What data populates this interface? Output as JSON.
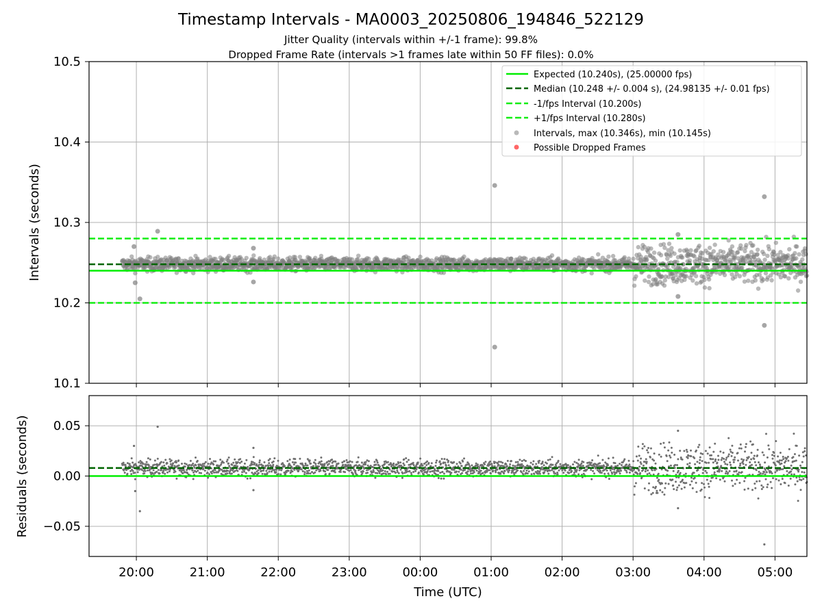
{
  "chart_data": {
    "type": "scatter",
    "title": "Timestamp Intervals - MA0003_20250806_194846_522129",
    "subtitle_lines": [
      "Jitter Quality (intervals within +/-1 frame): 99.8%",
      "Dropped Frame Rate (intervals >1 frames late within 50 FF files): 0.0%"
    ],
    "xlabel": "Time (UTC)",
    "x_axis_type": "time",
    "x_range": [
      "2025-08-06T19:20",
      "2025-08-07T05:27"
    ],
    "x_ticks": [
      "20:00",
      "21:00",
      "22:00",
      "23:00",
      "00:00",
      "01:00",
      "02:00",
      "03:00",
      "04:00",
      "05:00"
    ],
    "data_time_range": [
      "2025-08-06T19:48",
      "2025-08-07T05:27"
    ],
    "legend_position": "top-right",
    "grid": true,
    "colors": {
      "expected": "#00ee00",
      "median": "#006400",
      "interval_band": "#11ee11",
      "points": "#808080",
      "dropped": "#ff4040"
    },
    "top_panel": {
      "ylabel": "Intervals (seconds)",
      "ylim": [
        10.1,
        10.5
      ],
      "y_ticks": [
        "10.1",
        "10.2",
        "10.3",
        "10.4",
        "10.5"
      ],
      "lines": {
        "expected": 10.24,
        "median": 10.248,
        "minus_interval": 10.2,
        "plus_interval": 10.28
      },
      "legend": [
        "Expected (10.240s), (25.00000 fps)",
        "Median (10.248 +/- 0.004 s), (24.98135 +/- 0.01 fps)",
        "-1/fps Interval (10.200s)",
        "+1/fps Interval (10.280s)",
        "Intervals, max (10.346s), min (10.145s)",
        "Possible Dropped Frames"
      ],
      "outliers": [
        {
          "time": "2025-08-06T20:03",
          "value": 10.205
        },
        {
          "time": "2025-08-06T20:18",
          "value": 10.289
        },
        {
          "time": "2025-08-06T19:58",
          "value": 10.27
        },
        {
          "time": "2025-08-06T19:59",
          "value": 10.225
        },
        {
          "time": "2025-08-06T21:39",
          "value": 10.268
        },
        {
          "time": "2025-08-06T21:39",
          "value": 10.226
        },
        {
          "time": "2025-08-07T01:03",
          "value": 10.346
        },
        {
          "time": "2025-08-07T01:03",
          "value": 10.145
        },
        {
          "time": "2025-08-07T04:51",
          "value": 10.332
        },
        {
          "time": "2025-08-07T04:51",
          "value": 10.172
        },
        {
          "time": "2025-08-07T03:38",
          "value": 10.285
        },
        {
          "time": "2025-08-07T03:38",
          "value": 10.208
        }
      ],
      "stats": {
        "max": 10.346,
        "min": 10.145
      }
    },
    "bottom_panel": {
      "ylabel": "Residuals (seconds)",
      "ylim": [
        -0.08,
        0.08
      ],
      "y_ticks": [
        "−0.05",
        "0.00",
        "0.05"
      ],
      "lines": {
        "expected": 0.0,
        "median": 0.008
      }
    }
  }
}
